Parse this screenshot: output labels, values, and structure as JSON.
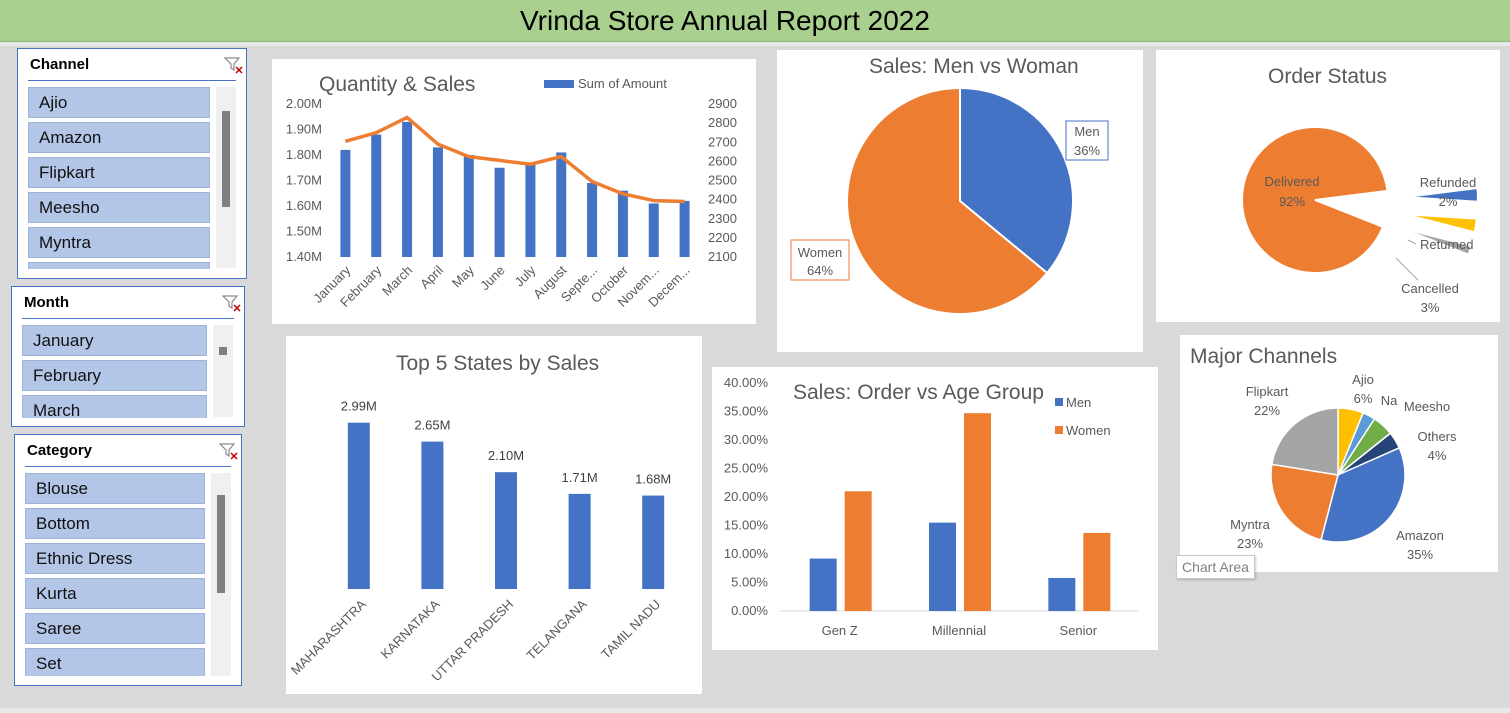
{
  "header": {
    "title": "Vrinda Store Annual Report 2022"
  },
  "slicers": {
    "channel": {
      "title": "Channel",
      "items": [
        "Ajio",
        "Amazon",
        "Flipkart",
        "Meesho",
        "Myntra"
      ]
    },
    "month": {
      "title": "Month",
      "items": [
        "January",
        "February",
        "March"
      ]
    },
    "category": {
      "title": "Category",
      "items": [
        "Blouse",
        "Bottom",
        "Ethnic Dress",
        "Kurta",
        "Saree",
        "Set"
      ]
    }
  },
  "tooltip": "Chart Area",
  "colors": {
    "blue": "#4472c4",
    "orange": "#ed7d31",
    "gray": "#a5a5a5",
    "yellow": "#ffc000",
    "green": "#70ad47",
    "lightblue": "#5b9bd5",
    "navy": "#264478",
    "title_bar": "#a9d08e"
  },
  "chart_data": [
    {
      "id": "quantity_sales",
      "type": "bar",
      "title": "Quantity & Sales",
      "categories": [
        "January",
        "February",
        "March",
        "April",
        "May",
        "June",
        "July",
        "August",
        "Septe...",
        "October",
        "Novem...",
        "Decem..."
      ],
      "series": [
        {
          "name": "Sum of Amount",
          "kind": "bar",
          "axis": "left",
          "values": [
            1.82,
            1.88,
            1.93,
            1.83,
            1.8,
            1.75,
            1.77,
            1.81,
            1.69,
            1.66,
            1.61,
            1.62
          ]
        },
        {
          "kind": "line",
          "axis": "right",
          "values": [
            2705,
            2750,
            2830,
            2690,
            2625,
            2605,
            2585,
            2625,
            2495,
            2430,
            2395,
            2390
          ]
        }
      ],
      "y_left": {
        "min": 1.4,
        "max": 2.0,
        "ticks": [
          "1.40M",
          "1.50M",
          "1.60M",
          "1.70M",
          "1.80M",
          "1.90M",
          "2.00M"
        ]
      },
      "y_right": {
        "min": 2100,
        "max": 2900,
        "ticks": [
          "2100",
          "2200",
          "2300",
          "2400",
          "2500",
          "2600",
          "2700",
          "2800",
          "2900"
        ]
      },
      "legend": "top-right"
    },
    {
      "id": "men_vs_woman",
      "type": "pie",
      "title": "Sales: Men vs Woman",
      "slices": [
        {
          "label": "Men",
          "value": 36,
          "text": "36%"
        },
        {
          "label": "Women",
          "value": 64,
          "text": "64%"
        }
      ]
    },
    {
      "id": "order_status",
      "type": "pie",
      "title": "Order Status",
      "slices": [
        {
          "label": "Delivered",
          "value": 92,
          "text": "92%"
        },
        {
          "label": "Cancelled",
          "value": 3,
          "text": "3%"
        },
        {
          "label": "Returned",
          "value": 3,
          "text": ""
        },
        {
          "label": "Refunded",
          "value": 2,
          "text": "2%"
        }
      ]
    },
    {
      "id": "top5_states",
      "type": "bar",
      "title": "Top 5 States by Sales",
      "categories": [
        "MAHARASHTRA",
        "KARNATAKA",
        "UTTAR PRADESH",
        "TELANGANA",
        "TAMIL NADU"
      ],
      "values": [
        2.99,
        2.65,
        2.1,
        1.71,
        1.68
      ],
      "data_labels": [
        "2.99M",
        "2.65M",
        "2.10M",
        "1.71M",
        "1.68M"
      ]
    },
    {
      "id": "age_group",
      "type": "bar",
      "title": "Sales: Order vs Age Group",
      "categories": [
        "Gen Z",
        "Millennial",
        "Senior"
      ],
      "series": [
        {
          "name": "Men",
          "values": [
            9.2,
            15.5,
            5.8
          ]
        },
        {
          "name": "Women",
          "values": [
            21.0,
            34.7,
            13.7
          ]
        }
      ],
      "ylim": [
        0,
        40
      ],
      "y_ticks": [
        "0.00%",
        "5.00%",
        "10.00%",
        "15.00%",
        "20.00%",
        "25.00%",
        "30.00%",
        "35.00%",
        "40.00%"
      ],
      "legend": "top-right"
    },
    {
      "id": "major_channels",
      "type": "pie",
      "title": "Major Channels",
      "slices": [
        {
          "label": "Ajio",
          "value": 6,
          "text": "6%"
        },
        {
          "label": "Na",
          "value": 3,
          "text": ""
        },
        {
          "label": "Meesho",
          "value": 5,
          "text": "5%"
        },
        {
          "label": "Others",
          "value": 4,
          "text": "4%"
        },
        {
          "label": "Amazon",
          "value": 35,
          "text": "35%"
        },
        {
          "label": "Myntra",
          "value": 23,
          "text": "23%"
        },
        {
          "label": "Flipkart",
          "value": 22,
          "text": "22%"
        }
      ]
    }
  ]
}
